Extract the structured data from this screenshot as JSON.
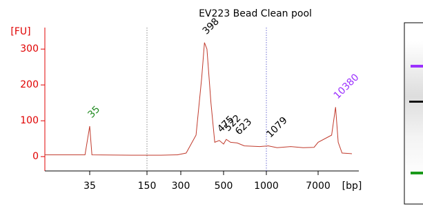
{
  "chart_data": {
    "type": "line",
    "title": "EV223 Bead Clean pool",
    "y_unit": "[FU]",
    "x_unit": "[bp]",
    "x_scale": "log",
    "xlim": [
      20,
      15000
    ],
    "xticks": [
      35,
      150,
      300,
      500,
      1000,
      7000
    ],
    "ylim": [
      -40,
      360
    ],
    "yticks": [
      0,
      100,
      200,
      300
    ],
    "region_bounds": [
      150,
      1000
    ],
    "series": [
      {
        "color": "#c0392b",
        "x": [
          20,
          33,
          35,
          37,
          100,
          200,
          280,
          320,
          360,
          385,
          398,
          410,
          430,
          450,
          475,
          500,
          522,
          560,
          623,
          700,
          900,
          1079,
          1500,
          2500,
          4000,
          6000,
          7000,
          9500,
          10380,
          11000,
          12000,
          15000
        ],
        "values": [
          5,
          5,
          85,
          5,
          4,
          4,
          5,
          10,
          60,
          220,
          318,
          300,
          150,
          40,
          45,
          35,
          48,
          40,
          38,
          30,
          28,
          30,
          25,
          28,
          25,
          26,
          40,
          60,
          138,
          40,
          10,
          8
        ]
      }
    ],
    "peak_labels": [
      {
        "x": 35,
        "label": "35",
        "color": "#228b22"
      },
      {
        "x": 398,
        "label": "398",
        "color": "#000000"
      },
      {
        "x": 475,
        "label": "475",
        "color": "#000000"
      },
      {
        "x": 522,
        "label": "522",
        "color": "#000000"
      },
      {
        "x": 623,
        "label": "623",
        "color": "#000000"
      },
      {
        "x": 1079,
        "label": "1079",
        "color": "#000000"
      },
      {
        "x": 10380,
        "label": "10380",
        "color": "#9b30ff"
      }
    ]
  }
}
